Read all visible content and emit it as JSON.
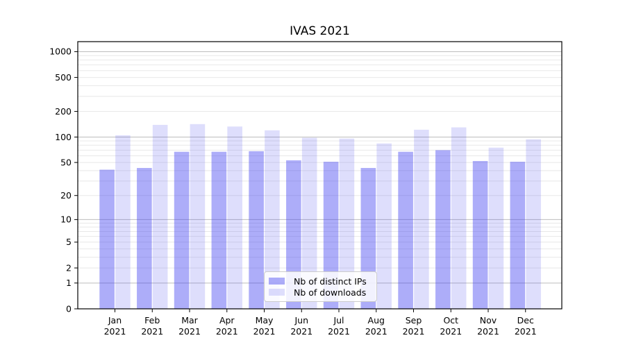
{
  "figure": {
    "title": "IVAS 2021"
  },
  "chart_data": {
    "type": "bar",
    "title": "IVAS 2021",
    "xlabel": "",
    "ylabel": "",
    "categories": [
      "Jan 2021",
      "Feb 2021",
      "Mar 2021",
      "Apr 2021",
      "May 2021",
      "Jun 2021",
      "Jul 2021",
      "Aug 2021",
      "Sep 2021",
      "Oct 2021",
      "Nov 2021",
      "Dec 2021"
    ],
    "x_tick_months": [
      "Jan",
      "Feb",
      "Mar",
      "Apr",
      "May",
      "Jun",
      "Jul",
      "Aug",
      "Sep",
      "Oct",
      "Nov",
      "Dec"
    ],
    "x_tick_year": "2021",
    "series": [
      {
        "name": "Nb of distinct IPs",
        "color": "rgba(60,60,240,0.42)",
        "values": [
          41,
          43,
          67,
          67,
          68,
          53,
          51,
          43,
          67,
          70,
          52,
          51
        ]
      },
      {
        "name": "Nb of downloads",
        "color": "rgba(60,60,240,0.17)",
        "values": [
          105,
          139,
          142,
          133,
          120,
          98,
          96,
          84,
          122,
          130,
          75,
          94
        ]
      }
    ],
    "y_axis": {
      "scale": "log10(value+1)",
      "tick_values": [
        0,
        1,
        2,
        5,
        10,
        20,
        50,
        100,
        200,
        500,
        1000
      ],
      "ylim": [
        0,
        1310
      ],
      "grid": "on"
    },
    "legend": {
      "position": "lower center",
      "entries": [
        "Nb of distinct IPs",
        "Nb of downloads"
      ]
    },
    "colors": {
      "grid_major": "#bdbdbd",
      "grid_minor": "#e8e8e8",
      "axis": "#000000",
      "text": "#000000"
    }
  }
}
